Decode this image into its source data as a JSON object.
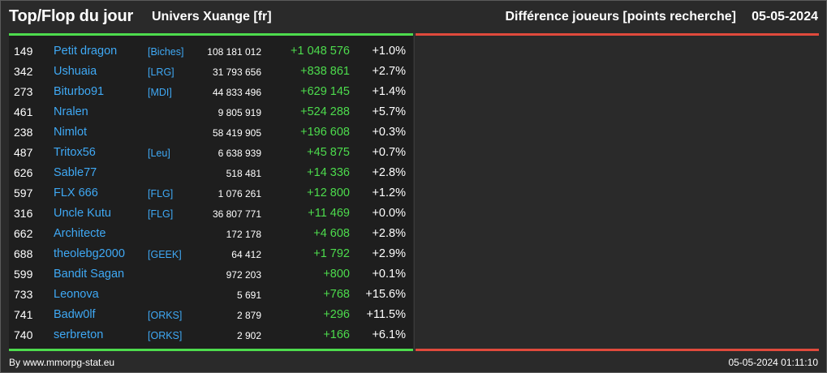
{
  "header": {
    "title": "Top/Flop du jour",
    "server": "Univers Xuange [fr]",
    "subtitle": "Différence joueurs [points recherche]",
    "date": "05-05-2024"
  },
  "colors": {
    "top_accent": "#4ddc4d",
    "flop_accent": "#e04a3c",
    "link": "#3fa9f5",
    "gain": "#4ddc4d"
  },
  "top": [
    {
      "rank": "149",
      "player": "Petit dragon",
      "alliance": "[Biches]",
      "points": "108 181 012",
      "diff": "+1 048 576",
      "pct": "+1.0%"
    },
    {
      "rank": "342",
      "player": "Ushuaia",
      "alliance": "[LRG]",
      "points": "31 793 656",
      "diff": "+838 861",
      "pct": "+2.7%"
    },
    {
      "rank": "273",
      "player": "Biturbo91",
      "alliance": "[MDI]",
      "points": "44 833 496",
      "diff": "+629 145",
      "pct": "+1.4%"
    },
    {
      "rank": "461",
      "player": "Nralen",
      "alliance": "",
      "points": "9 805 919",
      "diff": "+524 288",
      "pct": "+5.7%"
    },
    {
      "rank": "238",
      "player": "Nimlot",
      "alliance": "",
      "points": "58 419 905",
      "diff": "+196 608",
      "pct": "+0.3%"
    },
    {
      "rank": "487",
      "player": "Tritox56",
      "alliance": "[Leu]",
      "points": "6 638 939",
      "diff": "+45 875",
      "pct": "+0.7%"
    },
    {
      "rank": "626",
      "player": "Sable77",
      "alliance": "",
      "points": "518 481",
      "diff": "+14 336",
      "pct": "+2.8%"
    },
    {
      "rank": "597",
      "player": "FLX 666",
      "alliance": "[FLG]",
      "points": "1 076 261",
      "diff": "+12 800",
      "pct": "+1.2%"
    },
    {
      "rank": "316",
      "player": "Uncle Kutu",
      "alliance": "[FLG]",
      "points": "36 807 771",
      "diff": "+11 469",
      "pct": "+0.0%"
    },
    {
      "rank": "662",
      "player": "Architecte",
      "alliance": "",
      "points": "172 178",
      "diff": "+4 608",
      "pct": "+2.8%"
    },
    {
      "rank": "688",
      "player": "theolebg2000",
      "alliance": "[GEEK]",
      "points": "64 412",
      "diff": "+1 792",
      "pct": "+2.9%"
    },
    {
      "rank": "599",
      "player": "Bandit Sagan",
      "alliance": "",
      "points": "972 203",
      "diff": "+800",
      "pct": "+0.1%"
    },
    {
      "rank": "733",
      "player": "Leonova",
      "alliance": "",
      "points": "5 691",
      "diff": "+768",
      "pct": "+15.6%"
    },
    {
      "rank": "741",
      "player": "Badw0lf",
      "alliance": "[ORKS]",
      "points": "2 879",
      "diff": "+296",
      "pct": "+11.5%"
    },
    {
      "rank": "740",
      "player": "serbreton",
      "alliance": "[ORKS]",
      "points": "2 902",
      "diff": "+166",
      "pct": "+6.1%"
    }
  ],
  "footer": {
    "credit": "By www.mmorpg-stat.eu",
    "timestamp": "05-05-2024 01:11:10"
  }
}
